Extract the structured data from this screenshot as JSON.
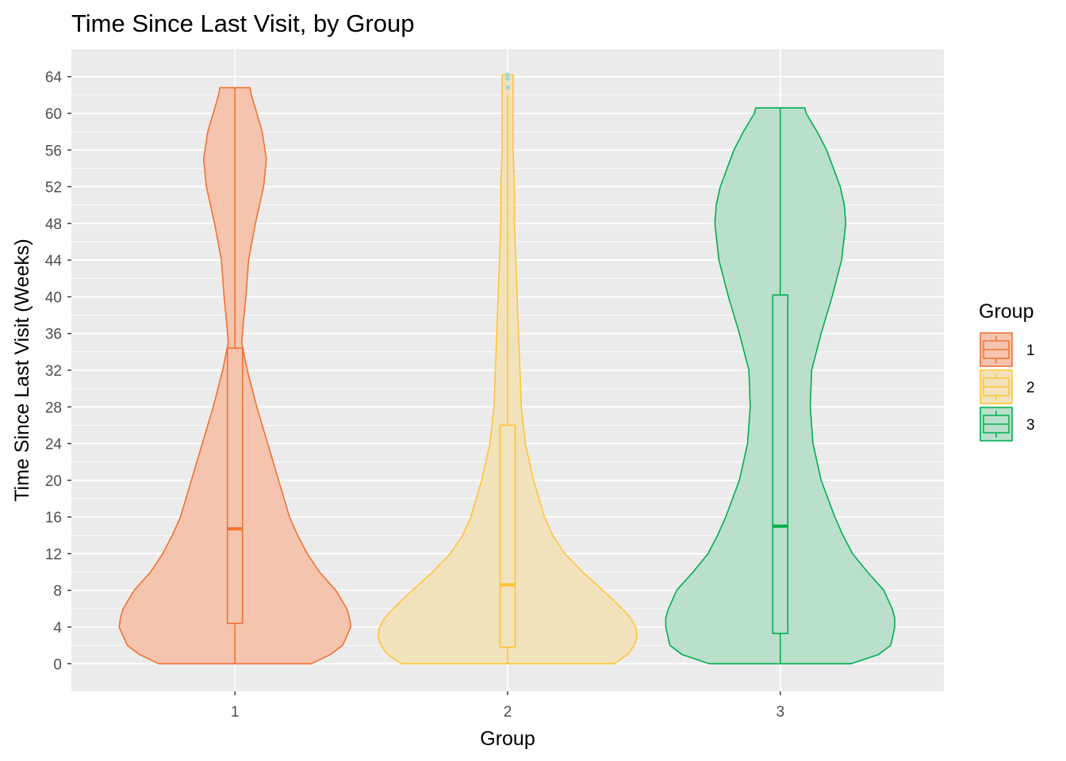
{
  "chart_data": {
    "type": "violin",
    "title": "Time Since Last Visit, by Group",
    "xlabel": "Group",
    "ylabel": "Time Since Last Visit (Weeks)",
    "categories": [
      "1",
      "2",
      "3"
    ],
    "ylim": [
      -3,
      67
    ],
    "y_ticks": [
      0,
      4,
      8,
      12,
      16,
      20,
      24,
      28,
      32,
      36,
      40,
      44,
      48,
      52,
      56,
      60,
      64
    ],
    "y_tick_labels": [
      "0",
      "4",
      "8",
      "12",
      "16",
      "20",
      "24",
      "28",
      "32",
      "36",
      "40",
      "44",
      "48",
      "52",
      "56",
      "60",
      "64"
    ],
    "grid": true,
    "legend": {
      "title": "Group",
      "position": "right",
      "labels": [
        "1",
        "2",
        "3"
      ]
    },
    "groups": [
      {
        "name": "1",
        "color": "#F07233",
        "fill": "#F4C4AE",
        "violin_profile": [
          [
            0,
            0.56
          ],
          [
            1,
            0.7
          ],
          [
            2,
            0.79
          ],
          [
            4,
            0.85
          ],
          [
            5,
            0.84
          ],
          [
            6,
            0.82
          ],
          [
            8,
            0.74
          ],
          [
            10,
            0.62
          ],
          [
            12,
            0.53
          ],
          [
            14,
            0.46
          ],
          [
            16,
            0.4
          ],
          [
            20,
            0.32
          ],
          [
            24,
            0.24
          ],
          [
            28,
            0.16
          ],
          [
            32,
            0.09
          ],
          [
            35,
            0.05
          ],
          [
            37,
            0.06
          ],
          [
            40,
            0.08
          ],
          [
            44,
            0.1
          ],
          [
            48,
            0.15
          ],
          [
            52,
            0.21
          ],
          [
            55,
            0.23
          ],
          [
            58,
            0.2
          ],
          [
            60,
            0.16
          ],
          [
            62,
            0.12
          ],
          [
            62.8,
            0.11
          ]
        ],
        "box": {
          "q1": 4.4,
          "median": 14.7,
          "q3": 34.4,
          "whisker_low": 0,
          "whisker_high": 62.8
        },
        "outliers": []
      },
      {
        "name": "2",
        "color": "#FFC433",
        "fill": "#F2E2BC",
        "violin_profile": [
          [
            0,
            0.78
          ],
          [
            1,
            0.88
          ],
          [
            2,
            0.93
          ],
          [
            3,
            0.95
          ],
          [
            4,
            0.94
          ],
          [
            5,
            0.9
          ],
          [
            6,
            0.84
          ],
          [
            8,
            0.7
          ],
          [
            10,
            0.55
          ],
          [
            12,
            0.42
          ],
          [
            14,
            0.33
          ],
          [
            16,
            0.27
          ],
          [
            20,
            0.19
          ],
          [
            24,
            0.13
          ],
          [
            28,
            0.1
          ],
          [
            32,
            0.09
          ],
          [
            36,
            0.08
          ],
          [
            40,
            0.07
          ],
          [
            44,
            0.06
          ],
          [
            48,
            0.05
          ],
          [
            52,
            0.05
          ],
          [
            56,
            0.04
          ],
          [
            60,
            0.04
          ],
          [
            62,
            0.04
          ],
          [
            64.2,
            0.04
          ]
        ],
        "box": {
          "q1": 1.8,
          "median": 8.6,
          "q3": 26.0,
          "whisker_low": 0,
          "whisker_high": 62.0
        },
        "outliers": [
          62.8,
          63.8,
          64.2
        ]
      },
      {
        "name": "3",
        "color": "#00AF50",
        "fill": "#BADFCB",
        "violin_profile": [
          [
            0,
            0.52
          ],
          [
            1,
            0.72
          ],
          [
            2,
            0.81
          ],
          [
            4,
            0.84
          ],
          [
            5,
            0.84
          ],
          [
            6,
            0.82
          ],
          [
            8,
            0.76
          ],
          [
            10,
            0.64
          ],
          [
            12,
            0.53
          ],
          [
            14,
            0.46
          ],
          [
            16,
            0.4
          ],
          [
            20,
            0.3
          ],
          [
            24,
            0.24
          ],
          [
            28,
            0.22
          ],
          [
            32,
            0.23
          ],
          [
            36,
            0.3
          ],
          [
            40,
            0.38
          ],
          [
            44,
            0.45
          ],
          [
            48,
            0.48
          ],
          [
            50,
            0.47
          ],
          [
            52,
            0.44
          ],
          [
            56,
            0.34
          ],
          [
            58,
            0.27
          ],
          [
            60,
            0.19
          ],
          [
            60.6,
            0.18
          ]
        ],
        "box": {
          "q1": 3.3,
          "median": 15.0,
          "q3": 40.2,
          "whisker_low": 0,
          "whisker_high": 60.6
        },
        "outliers": []
      }
    ]
  }
}
